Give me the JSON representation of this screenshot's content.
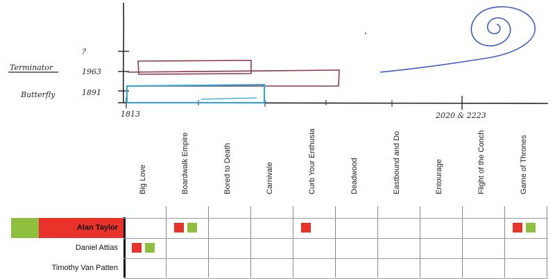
{
  "sketch": {
    "y_labels": {
      "top": "?",
      "middle": "1963",
      "bottom": "1891"
    },
    "row_labels": {
      "terminator": "Terminator",
      "butterfly": "Butterfly"
    },
    "x_labels": {
      "start": "1813",
      "end": "2020 & 2223"
    },
    "colors": {
      "terminator_bar": "#8a3a4a",
      "butterfly_bar": "#2aa6df",
      "spiral": "#3b5bc6",
      "axis": "#222222"
    }
  },
  "grid": {
    "columns": [
      "Big Love",
      "Boardwalk Empire",
      "Bored to Death",
      "Carnivale",
      "Curb Your Enthusia",
      "Deadwood",
      "Eastbound and Do",
      "Entourage",
      "Flight of the Conch",
      "Game of Thrones"
    ],
    "rows": [
      {
        "name": "Alan Taylor",
        "highlight": true,
        "cells": [
          [],
          [
            "red",
            "green"
          ],
          [],
          [],
          [
            "red"
          ],
          [],
          [],
          [],
          [],
          [
            "red",
            "green"
          ]
        ]
      },
      {
        "name": "Daniel Attias",
        "highlight": false,
        "cells": [
          [
            "red",
            "green"
          ],
          [],
          [],
          [],
          [],
          [],
          [],
          [],
          [],
          []
        ]
      },
      {
        "name": "Timothy Van Patten",
        "highlight": false,
        "cells": [
          [],
          [],
          [],
          [],
          [],
          [],
          [],
          [],
          [],
          []
        ]
      }
    ],
    "colors": {
      "red": "#e8322a",
      "green": "#8ec03e",
      "highlight_red": "#e8322a",
      "highlight_green": "#8ec03e"
    }
  }
}
